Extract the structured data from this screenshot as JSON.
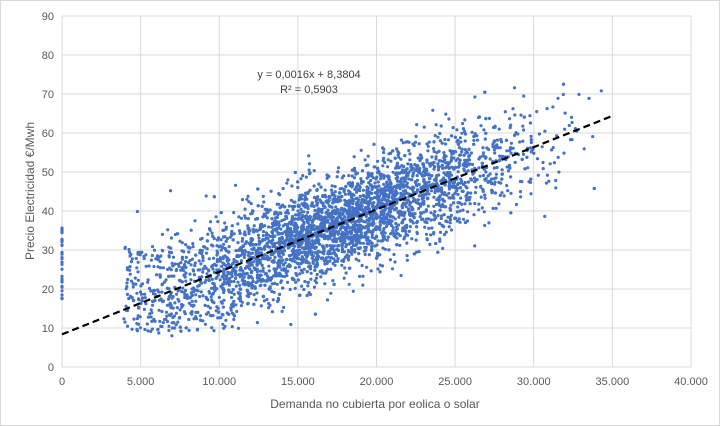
{
  "chart_data": {
    "type": "scatter",
    "xlabel": "Demanda no cubierta por eolica o solar",
    "ylabel": "Precio Electricidad €/Mwh",
    "xlim": [
      0,
      40000
    ],
    "ylim": [
      0,
      90
    ],
    "x_ticks": [
      0,
      5000,
      10000,
      15000,
      20000,
      25000,
      30000,
      35000,
      40000
    ],
    "x_tick_labels": [
      "0",
      "5.000",
      "10.000",
      "15.000",
      "20.000",
      "25.000",
      "30.000",
      "35.000",
      "40.000"
    ],
    "y_ticks": [
      0,
      10,
      20,
      30,
      40,
      50,
      60,
      70,
      80,
      90
    ],
    "y_tick_labels": [
      "0",
      "10",
      "20",
      "30",
      "40",
      "50",
      "60",
      "70",
      "80",
      "90"
    ],
    "grid": "horizontal and vertical major gridlines",
    "point_color": "#4472C4",
    "trendline": {
      "type": "linear",
      "slope": 0.0016,
      "intercept": 8.3804,
      "x_range": [
        0,
        35000
      ],
      "color": "#000000",
      "style": "dashed",
      "equation_text": "y = 0,0016x + 8,3804",
      "r2_text": "R² = 0,5903"
    },
    "point_cloud_summary": {
      "approx_points": 4000,
      "x_range": [
        0,
        35500
      ],
      "y_range": [
        8,
        79
      ],
      "note": "dense cloud following the trendline; sparse vertical strip at x = 0 between ~17 and ~37"
    }
  }
}
